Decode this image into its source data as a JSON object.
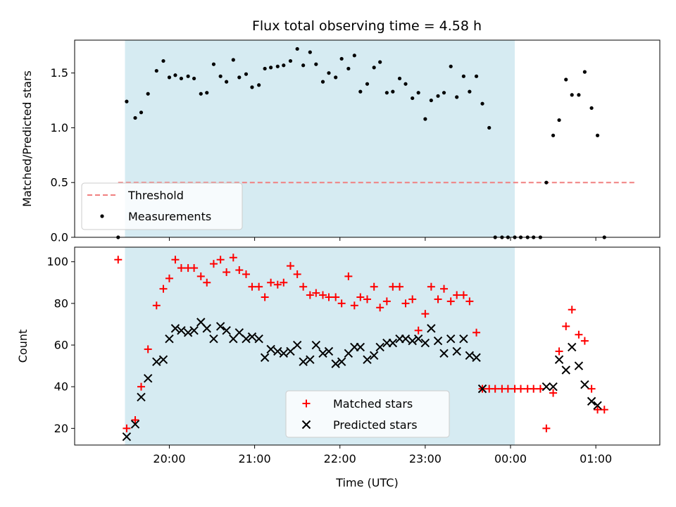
{
  "chart_data": [
    {
      "type": "scatter",
      "title": "Flux total observing time = 4.58 h",
      "xlabel": "",
      "ylabel": "Matched/Predicted stars",
      "ylim": [
        0,
        1.8
      ],
      "yticks": [
        "0.0",
        "0.5",
        "1.0",
        "1.5"
      ],
      "ytick_values": [
        0,
        0.5,
        1.0,
        1.5
      ],
      "xlim_hours": [
        18.89,
        25.75
      ],
      "legend": {
        "placement": "lower-left",
        "entries": [
          "Threshold",
          "Measurements"
        ]
      },
      "shaded_span_hours": [
        19.48,
        24.05
      ],
      "shade_color": "#add8e6",
      "threshold": {
        "name": "Threshold",
        "y": 0.5,
        "x_from_hours": 19.4,
        "x_to_hours": 25.48,
        "color": "#f08080"
      },
      "series": [
        {
          "name": "Measurements",
          "color": "#000000",
          "points": [
            [
              19.4,
              0.0
            ],
            [
              19.5,
              1.24
            ],
            [
              19.6,
              1.09
            ],
            [
              19.67,
              1.14
            ],
            [
              19.75,
              1.31
            ],
            [
              19.85,
              1.52
            ],
            [
              19.93,
              1.61
            ],
            [
              20.0,
              1.46
            ],
            [
              20.07,
              1.48
            ],
            [
              20.14,
              1.45
            ],
            [
              20.22,
              1.47
            ],
            [
              20.29,
              1.45
            ],
            [
              20.37,
              1.31
            ],
            [
              20.44,
              1.32
            ],
            [
              20.52,
              1.58
            ],
            [
              20.6,
              1.47
            ],
            [
              20.67,
              1.42
            ],
            [
              20.75,
              1.62
            ],
            [
              20.82,
              1.46
            ],
            [
              20.9,
              1.49
            ],
            [
              20.97,
              1.37
            ],
            [
              21.05,
              1.39
            ],
            [
              21.12,
              1.54
            ],
            [
              21.19,
              1.55
            ],
            [
              21.27,
              1.56
            ],
            [
              21.34,
              1.57
            ],
            [
              21.42,
              1.61
            ],
            [
              21.5,
              1.72
            ],
            [
              21.57,
              1.57
            ],
            [
              21.65,
              1.69
            ],
            [
              21.72,
              1.58
            ],
            [
              21.8,
              1.42
            ],
            [
              21.87,
              1.5
            ],
            [
              21.95,
              1.46
            ],
            [
              22.02,
              1.63
            ],
            [
              22.1,
              1.54
            ],
            [
              22.17,
              1.66
            ],
            [
              22.24,
              1.33
            ],
            [
              22.32,
              1.4
            ],
            [
              22.4,
              1.55
            ],
            [
              22.47,
              1.6
            ],
            [
              22.55,
              1.32
            ],
            [
              22.62,
              1.33
            ],
            [
              22.7,
              1.45
            ],
            [
              22.77,
              1.4
            ],
            [
              22.85,
              1.27
            ],
            [
              22.92,
              1.32
            ],
            [
              23.0,
              1.08
            ],
            [
              23.07,
              1.25
            ],
            [
              23.15,
              1.29
            ],
            [
              23.22,
              1.32
            ],
            [
              23.3,
              1.56
            ],
            [
              23.37,
              1.28
            ],
            [
              23.45,
              1.47
            ],
            [
              23.52,
              1.33
            ],
            [
              23.6,
              1.47
            ],
            [
              23.67,
              1.22
            ],
            [
              23.75,
              1.0
            ],
            [
              23.82,
              0.0
            ],
            [
              23.9,
              0.0
            ],
            [
              23.97,
              0.0
            ],
            [
              24.05,
              0.0
            ],
            [
              24.12,
              0.0
            ],
            [
              24.2,
              0.0
            ],
            [
              24.27,
              0.0
            ],
            [
              24.35,
              0.0
            ],
            [
              24.42,
              0.5
            ],
            [
              24.5,
              0.93
            ],
            [
              24.57,
              1.07
            ],
            [
              24.65,
              1.44
            ],
            [
              24.72,
              1.3
            ],
            [
              24.8,
              1.3
            ],
            [
              24.87,
              1.51
            ],
            [
              24.95,
              1.18
            ],
            [
              25.02,
              0.93
            ],
            [
              25.1,
              0.0
            ]
          ]
        }
      ]
    },
    {
      "type": "scatter",
      "title": "",
      "xlabel": "Time (UTC)",
      "ylabel": "Count",
      "ylim": [
        12,
        107
      ],
      "yticks": [
        "20",
        "40",
        "60",
        "80",
        "100"
      ],
      "ytick_values": [
        20,
        40,
        60,
        80,
        100
      ],
      "xlim_hours": [
        18.89,
        25.75
      ],
      "xticks": [
        "20:00",
        "21:00",
        "22:00",
        "23:00",
        "00:00",
        "01:00"
      ],
      "xtick_hours": [
        20,
        21,
        22,
        23,
        24,
        25
      ],
      "legend": {
        "placement": "lower-center",
        "entries": [
          "Matched stars",
          "Predicted stars"
        ]
      },
      "shaded_span_hours": [
        19.48,
        24.05
      ],
      "shade_color": "#add8e6",
      "series": [
        {
          "name": "Matched stars",
          "marker": "plus",
          "color": "#ff0000",
          "points": [
            [
              19.4,
              101
            ],
            [
              19.5,
              20
            ],
            [
              19.6,
              24
            ],
            [
              19.67,
              40
            ],
            [
              19.75,
              58
            ],
            [
              19.85,
              79
            ],
            [
              19.93,
              87
            ],
            [
              20.0,
              92
            ],
            [
              20.07,
              101
            ],
            [
              20.14,
              97
            ],
            [
              20.22,
              97
            ],
            [
              20.29,
              97
            ],
            [
              20.37,
              93
            ],
            [
              20.44,
              90
            ],
            [
              20.52,
              99
            ],
            [
              20.6,
              101
            ],
            [
              20.67,
              95
            ],
            [
              20.75,
              102
            ],
            [
              20.82,
              96
            ],
            [
              20.9,
              94
            ],
            [
              20.97,
              88
            ],
            [
              21.05,
              88
            ],
            [
              21.12,
              83
            ],
            [
              21.19,
              90
            ],
            [
              21.27,
              89
            ],
            [
              21.34,
              90
            ],
            [
              21.42,
              98
            ],
            [
              21.5,
              94
            ],
            [
              21.57,
              88
            ],
            [
              21.65,
              84
            ],
            [
              21.72,
              85
            ],
            [
              21.8,
              84
            ],
            [
              21.87,
              83
            ],
            [
              21.95,
              83
            ],
            [
              22.02,
              80
            ],
            [
              22.1,
              93
            ],
            [
              22.17,
              79
            ],
            [
              22.24,
              83
            ],
            [
              22.32,
              82
            ],
            [
              22.4,
              88
            ],
            [
              22.47,
              78
            ],
            [
              22.55,
              81
            ],
            [
              22.62,
              88
            ],
            [
              22.7,
              88
            ],
            [
              22.77,
              80
            ],
            [
              22.85,
              82
            ],
            [
              22.92,
              67
            ],
            [
              23.0,
              75
            ],
            [
              23.07,
              88
            ],
            [
              23.15,
              82
            ],
            [
              23.22,
              87
            ],
            [
              23.3,
              81
            ],
            [
              23.37,
              84
            ],
            [
              23.45,
              84
            ],
            [
              23.52,
              81
            ],
            [
              23.6,
              66
            ],
            [
              23.67,
              39
            ],
            [
              23.75,
              39
            ],
            [
              23.82,
              39
            ],
            [
              23.9,
              39
            ],
            [
              23.97,
              39
            ],
            [
              24.05,
              39
            ],
            [
              24.12,
              39
            ],
            [
              24.2,
              39
            ],
            [
              24.27,
              39
            ],
            [
              24.35,
              39
            ],
            [
              24.42,
              20
            ],
            [
              24.5,
              37
            ],
            [
              24.57,
              57
            ],
            [
              24.65,
              69
            ],
            [
              24.72,
              77
            ],
            [
              24.8,
              65
            ],
            [
              24.87,
              62
            ],
            [
              24.95,
              39
            ],
            [
              25.02,
              29
            ],
            [
              25.1,
              29
            ]
          ]
        },
        {
          "name": "Predicted stars",
          "marker": "x",
          "color": "#000000",
          "points": [
            [
              19.5,
              16
            ],
            [
              19.6,
              22
            ],
            [
              19.67,
              35
            ],
            [
              19.75,
              44
            ],
            [
              19.85,
              52
            ],
            [
              19.93,
              53
            ],
            [
              20.0,
              63
            ],
            [
              20.07,
              68
            ],
            [
              20.14,
              67
            ],
            [
              20.22,
              66
            ],
            [
              20.29,
              67
            ],
            [
              20.37,
              71
            ],
            [
              20.44,
              68
            ],
            [
              20.52,
              63
            ],
            [
              20.6,
              69
            ],
            [
              20.67,
              67
            ],
            [
              20.75,
              63
            ],
            [
              20.82,
              66
            ],
            [
              20.9,
              63
            ],
            [
              20.97,
              64
            ],
            [
              21.05,
              63
            ],
            [
              21.12,
              54
            ],
            [
              21.19,
              58
            ],
            [
              21.27,
              57
            ],
            [
              21.34,
              56
            ],
            [
              21.42,
              57
            ],
            [
              21.5,
              60
            ],
            [
              21.57,
              52
            ],
            [
              21.65,
              53
            ],
            [
              21.72,
              60
            ],
            [
              21.8,
              56
            ],
            [
              21.87,
              57
            ],
            [
              21.95,
              51
            ],
            [
              22.02,
              52
            ],
            [
              22.1,
              56
            ],
            [
              22.17,
              59
            ],
            [
              22.24,
              59
            ],
            [
              22.32,
              53
            ],
            [
              22.4,
              55
            ],
            [
              22.47,
              59
            ],
            [
              22.55,
              61
            ],
            [
              22.62,
              61
            ],
            [
              22.7,
              63
            ],
            [
              22.77,
              63
            ],
            [
              22.85,
              62
            ],
            [
              22.92,
              63
            ],
            [
              23.0,
              61
            ],
            [
              23.07,
              68
            ],
            [
              23.15,
              62
            ],
            [
              23.22,
              56
            ],
            [
              23.3,
              63
            ],
            [
              23.37,
              57
            ],
            [
              23.45,
              63
            ],
            [
              23.52,
              55
            ],
            [
              23.6,
              54
            ],
            [
              23.67,
              39
            ],
            [
              24.42,
              40
            ],
            [
              24.5,
              40
            ],
            [
              24.57,
              53
            ],
            [
              24.65,
              48
            ],
            [
              24.72,
              59
            ],
            [
              24.8,
              50
            ],
            [
              24.87,
              41
            ],
            [
              24.95,
              33
            ],
            [
              25.02,
              31
            ]
          ]
        }
      ]
    }
  ]
}
